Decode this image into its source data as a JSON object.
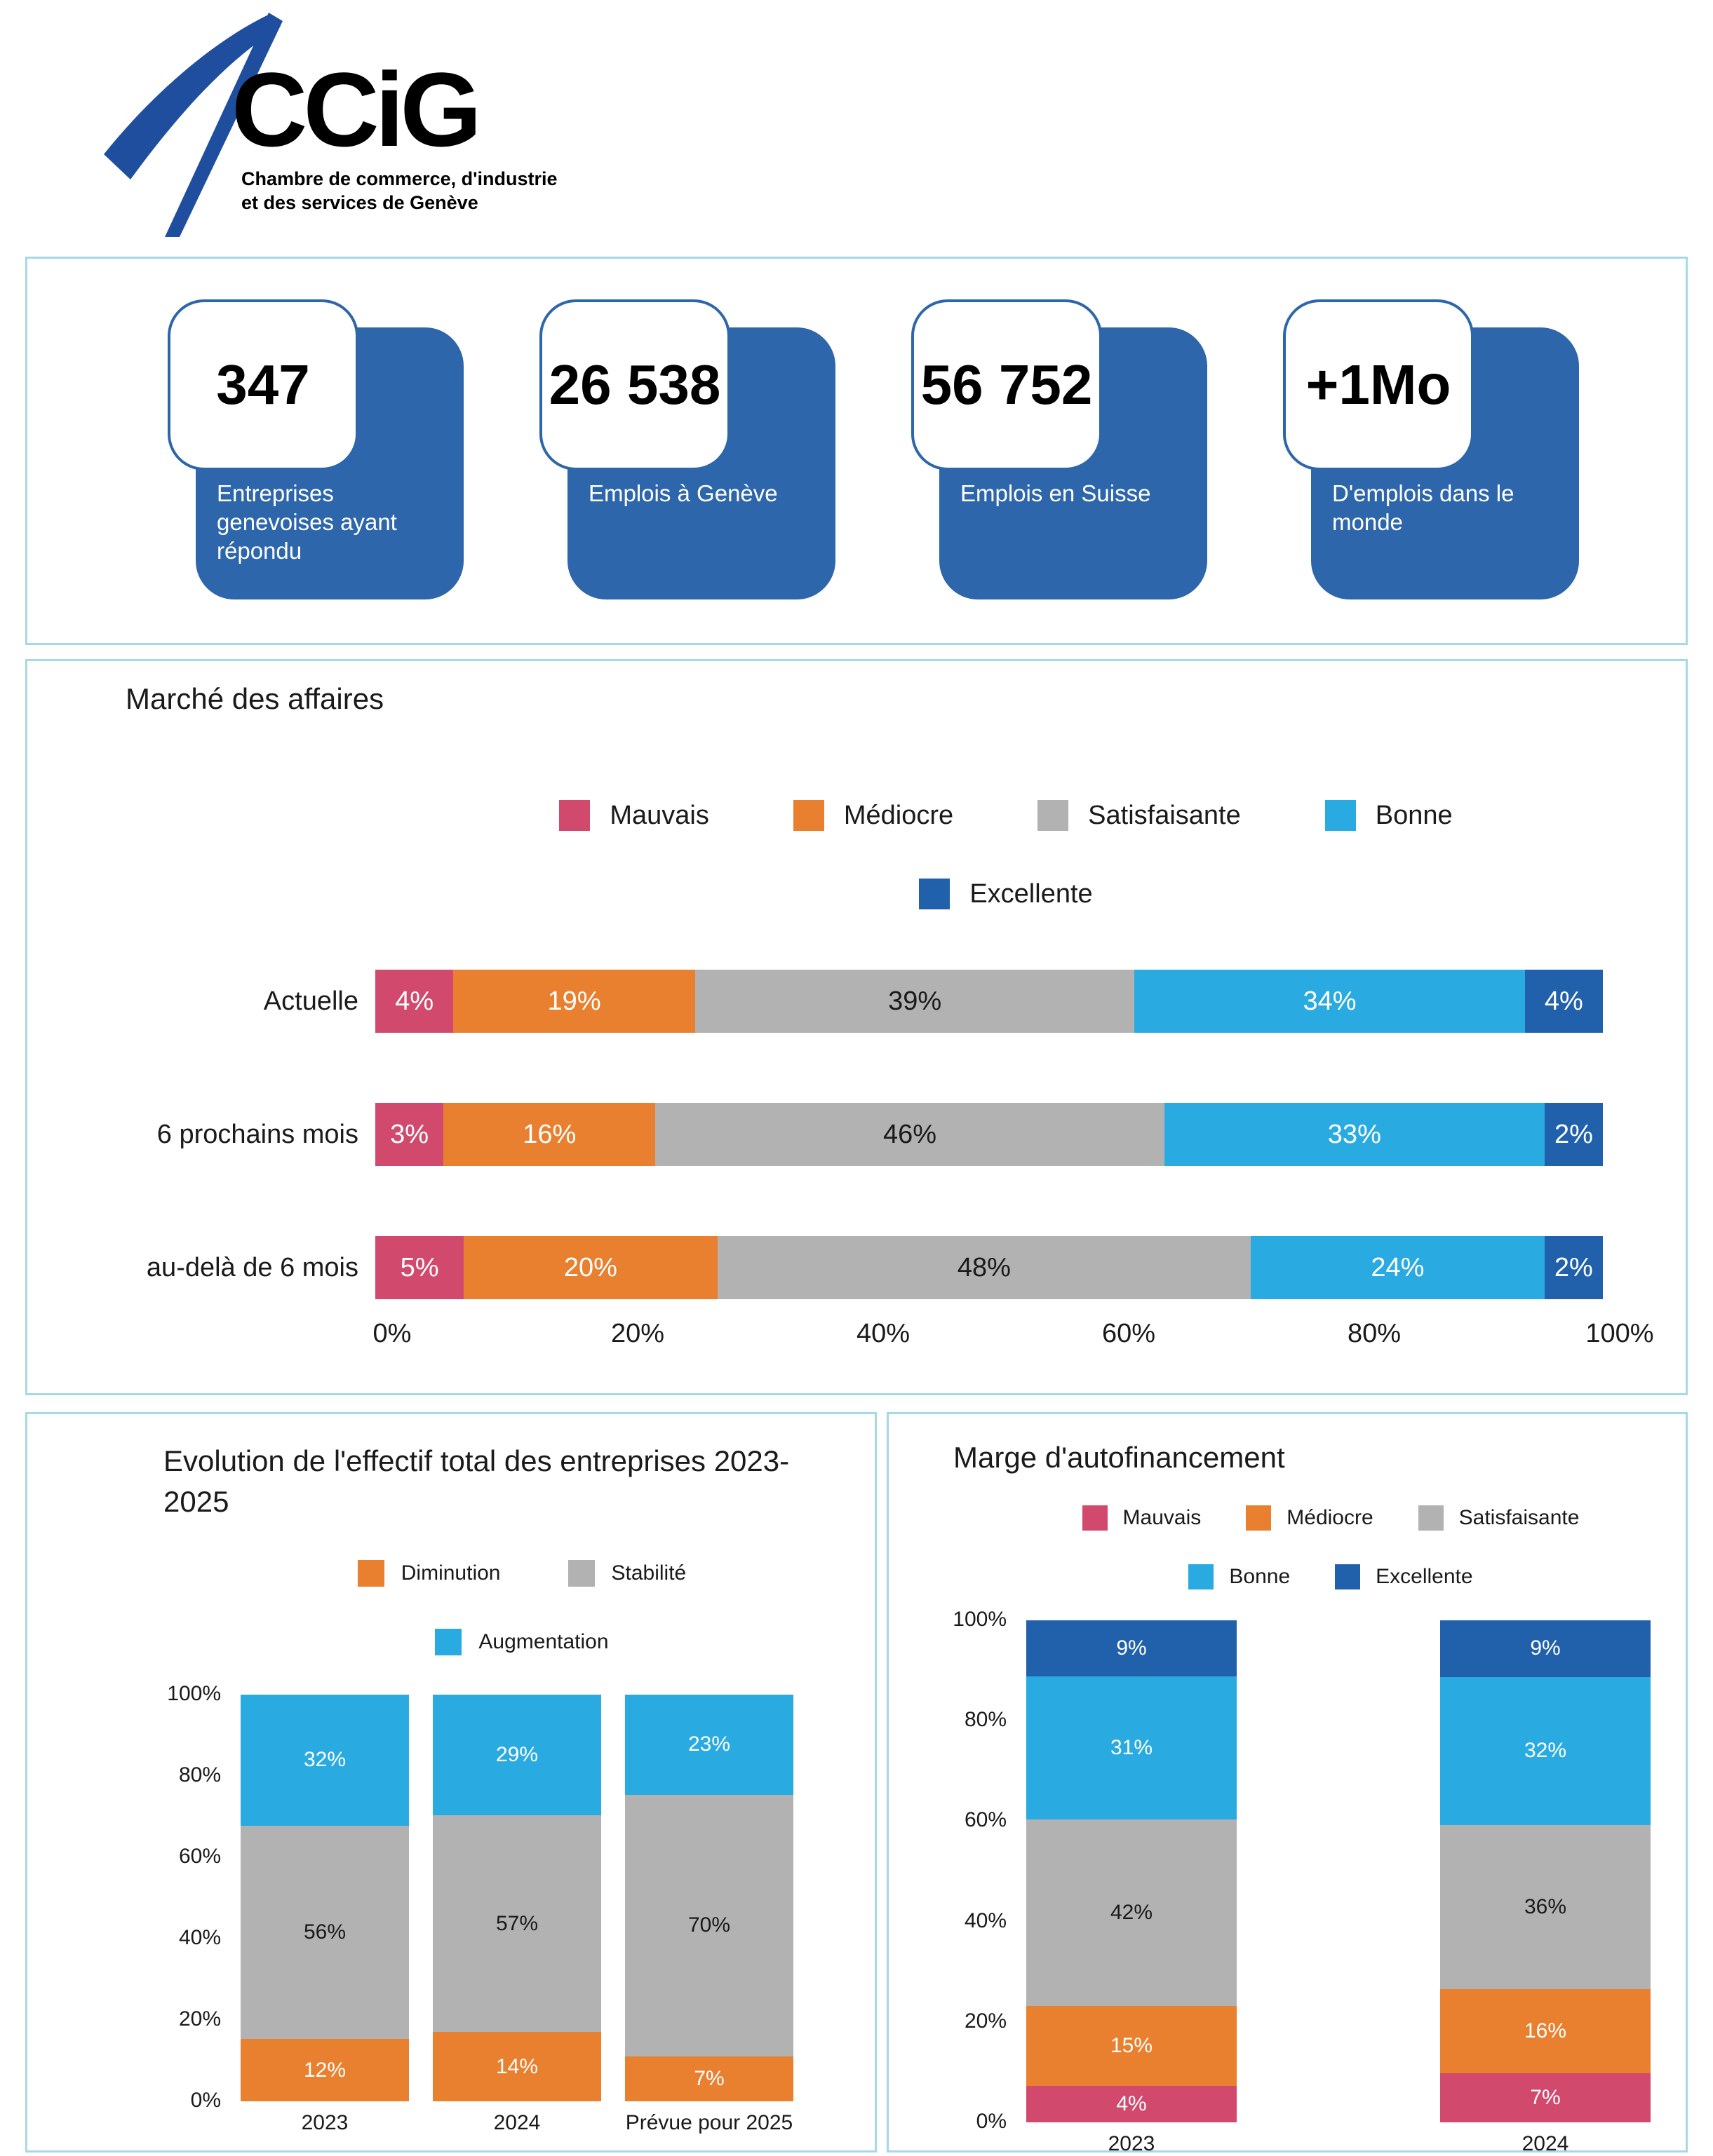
{
  "logo": {
    "acronym": "CCiG",
    "tagline_line1": "Chambre de commerce, d'industrie",
    "tagline_line2": "et des services de Genève"
  },
  "stats": {
    "cards": [
      {
        "value": "347",
        "label": "Entreprises genevoises ayant répondu"
      },
      {
        "value": "26 538",
        "label": "Emplois à Genève"
      },
      {
        "value": "56 752",
        "label": "Emplois en Suisse"
      },
      {
        "value": "+1Mo",
        "label": "D'emplois dans le monde"
      }
    ]
  },
  "colors": {
    "mauvais": "#d14a6e",
    "mediocre": "#e8802f",
    "satisfaisante": "#b3b2b2",
    "bonne": "#29abe2",
    "excellente": "#2161ab",
    "card_blue": "#2d66ab",
    "panel_border": "#a6d9e7",
    "logo_blue": "#1f4e9e"
  },
  "chart_data": [
    {
      "type": "bar",
      "orientation": "horizontal",
      "title": "Marché des affaires",
      "categories": [
        "Actuelle",
        "6 prochains mois",
        "au-delà de 6 mois"
      ],
      "series": [
        {
          "name": "Mauvais",
          "color_key": "mauvais",
          "label_dark": false,
          "values": [
            4,
            3,
            5
          ]
        },
        {
          "name": "Médiocre",
          "color_key": "mediocre",
          "label_dark": false,
          "values": [
            19,
            16,
            20
          ]
        },
        {
          "name": "Satisfaisante",
          "color_key": "satisfaisante",
          "label_dark": true,
          "values": [
            39,
            46,
            48
          ]
        },
        {
          "name": "Bonne",
          "color_key": "bonne",
          "label_dark": false,
          "values": [
            34,
            33,
            24
          ]
        },
        {
          "name": "Excellente",
          "color_key": "excellente",
          "label_dark": false,
          "values": [
            4,
            2,
            2
          ]
        }
      ],
      "legend_rows": [
        [
          0,
          1,
          2,
          3
        ],
        [
          4
        ]
      ],
      "x_ticks": [
        "0%",
        "20%",
        "40%",
        "60%",
        "80%",
        "100%"
      ],
      "xlim": [
        0,
        100
      ],
      "legend_position": "top",
      "grid": false
    },
    {
      "type": "bar",
      "orientation": "vertical",
      "title": "Evolution de l'effectif total des entreprises 2023-2025",
      "categories": [
        "2023",
        "2024",
        "Prévue pour 2025"
      ],
      "series": [
        {
          "name": "Diminution",
          "color_key": "mediocre",
          "label_dark": false,
          "values": [
            12,
            14,
            7
          ]
        },
        {
          "name": "Stabilité",
          "color_key": "satisfaisante",
          "label_dark": true,
          "values": [
            56,
            57,
            70
          ]
        },
        {
          "name": "Augmentation",
          "color_key": "bonne",
          "label_dark": false,
          "values": [
            32,
            29,
            23
          ]
        }
      ],
      "legend_rows": [
        [
          0,
          1
        ],
        [
          2
        ]
      ],
      "y_ticks": [
        "100%",
        "80%",
        "60%",
        "40%",
        "20%",
        "0%"
      ],
      "ylim": [
        0,
        100
      ],
      "legend_position": "top",
      "grid": false
    },
    {
      "type": "bar",
      "orientation": "vertical",
      "title": "Marge d'autofinancement",
      "categories": [
        "2023",
        "2024"
      ],
      "series": [
        {
          "name": "Mauvais",
          "color_key": "mauvais",
          "label_dark": false,
          "values": [
            4,
            7
          ]
        },
        {
          "name": "Médiocre",
          "color_key": "mediocre",
          "label_dark": false,
          "values": [
            15,
            16
          ]
        },
        {
          "name": "Satisfaisante",
          "color_key": "satisfaisante",
          "label_dark": true,
          "values": [
            42,
            36
          ]
        },
        {
          "name": "Bonne",
          "color_key": "bonne",
          "label_dark": false,
          "values": [
            31,
            32
          ]
        },
        {
          "name": "Excellente",
          "color_key": "excellente",
          "label_dark": false,
          "values": [
            9,
            9
          ]
        }
      ],
      "legend_rows": [
        [
          0,
          1,
          2
        ],
        [
          3,
          4
        ]
      ],
      "y_ticks": [
        "100%",
        "80%",
        "60%",
        "40%",
        "20%",
        "0%"
      ],
      "ylim": [
        0,
        100
      ],
      "legend_position": "top",
      "grid": false
    }
  ]
}
